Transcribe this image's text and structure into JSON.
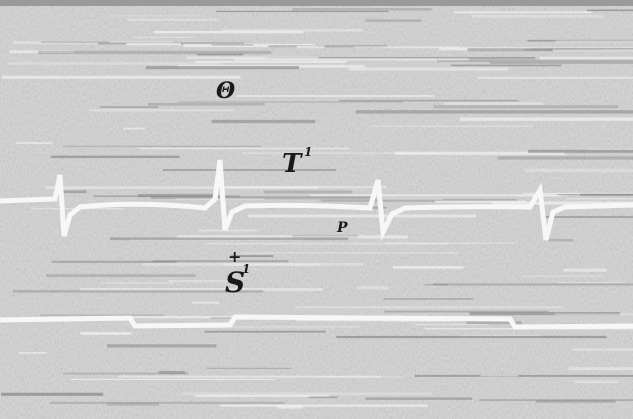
{
  "labels": {
    "theta": "Θ",
    "t": "T",
    "t_sup": "1",
    "p": "P",
    "plus": "+",
    "s": "S",
    "s_sup": "1"
  }
}
